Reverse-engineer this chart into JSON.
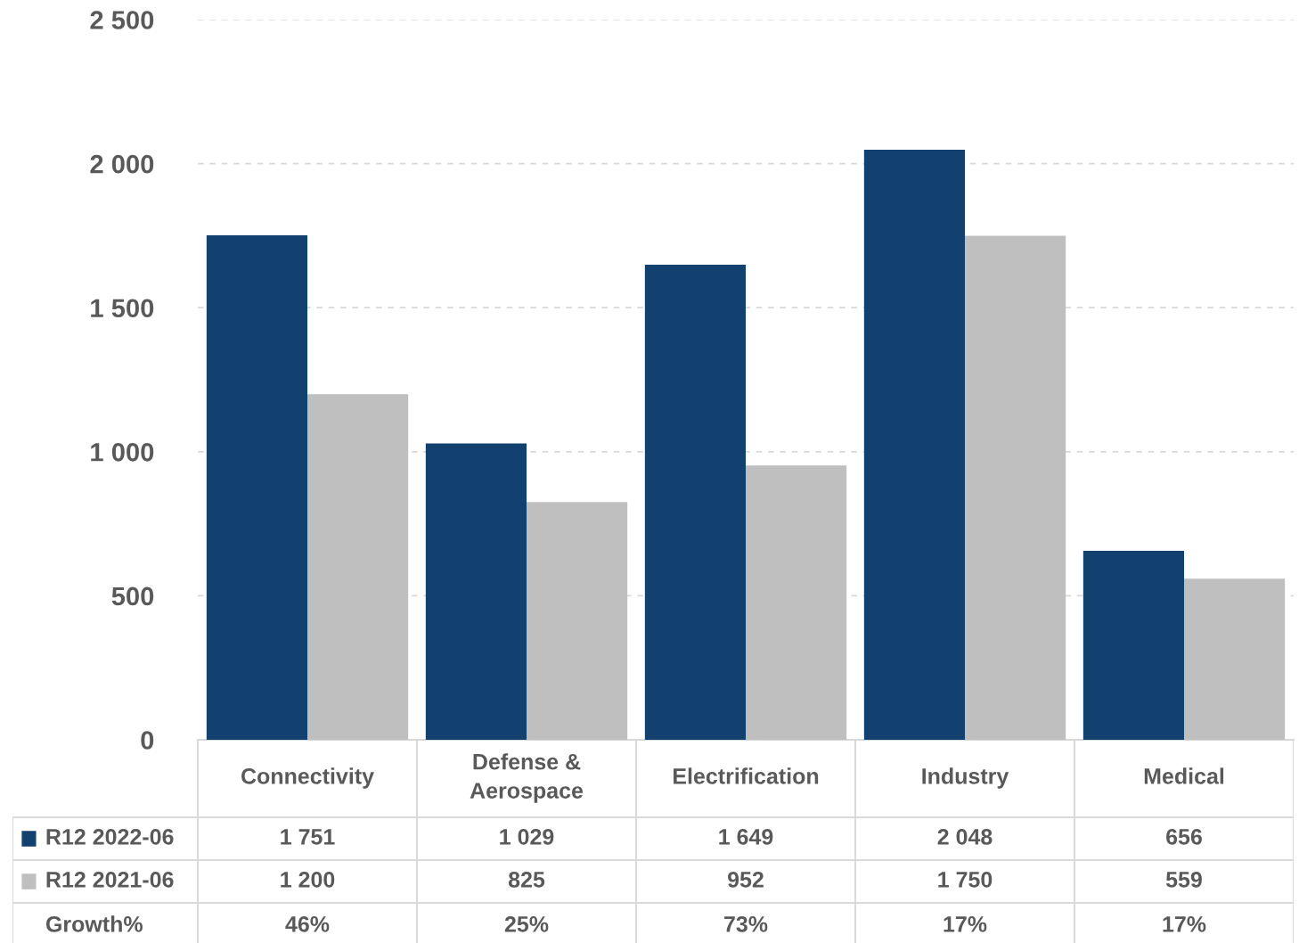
{
  "chart_data": {
    "type": "bar",
    "categories": [
      "Connectivity",
      "Defense &\nAerospace",
      "Electrification",
      "Industry",
      "Medical"
    ],
    "series": [
      {
        "name": "R12 2022-06",
        "color": "#12406f",
        "values": [
          1751,
          1029,
          1649,
          2048,
          656
        ],
        "value_labels": [
          "1 751",
          "1 029",
          "1 649",
          "2 048",
          "656"
        ]
      },
      {
        "name": "R12 2021-06",
        "color": "#bfbfbf",
        "values": [
          1200,
          825,
          952,
          1750,
          559
        ],
        "value_labels": [
          "1 200",
          "825",
          "952",
          "1 750",
          "559"
        ]
      }
    ],
    "ylim": [
      0,
      2500
    ],
    "yticks": [
      0,
      {
        "value": 500,
        "label": "500"
      },
      {
        "value": 1000,
        "label": "1 000"
      },
      {
        "value": 1500,
        "label": "1 500"
      },
      {
        "value": 2000,
        "label": "2 000"
      },
      {
        "value": 2500,
        "label": "2 500"
      }
    ],
    "grid": "y",
    "legend": "bottom",
    "annotations": [
      "Growth%",
      "46%",
      "25%",
      "73%",
      "17%",
      "17%"
    ]
  }
}
